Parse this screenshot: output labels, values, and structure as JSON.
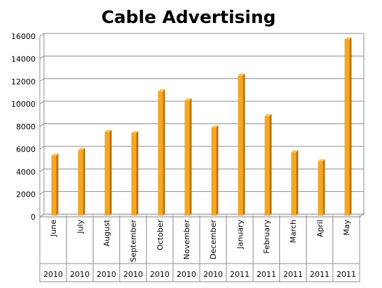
{
  "chart_data": {
    "type": "bar",
    "title": "Cable Advertising",
    "categories": [
      "June",
      "July",
      "August",
      "September",
      "October",
      "November",
      "December",
      "January",
      "February",
      "March",
      "April",
      "May"
    ],
    "years": [
      "2010",
      "2010",
      "2010",
      "2010",
      "2010",
      "2010",
      "2010",
      "2011",
      "2011",
      "2011",
      "2011",
      "2011"
    ],
    "values": [
      5300,
      5800,
      7400,
      7300,
      11000,
      10200,
      7800,
      12400,
      8800,
      5600,
      4800,
      15600
    ],
    "y_ticks": [
      "0",
      "2000",
      "4000",
      "6000",
      "8000",
      "10000",
      "12000",
      "14000",
      "16000"
    ],
    "ylim": [
      0,
      16000
    ],
    "xlabel": "",
    "ylabel": "",
    "grid": true,
    "bar_color": "#F5A623",
    "bar_side_color": "#B8750F",
    "bar_top_color": "#FCC65A"
  }
}
